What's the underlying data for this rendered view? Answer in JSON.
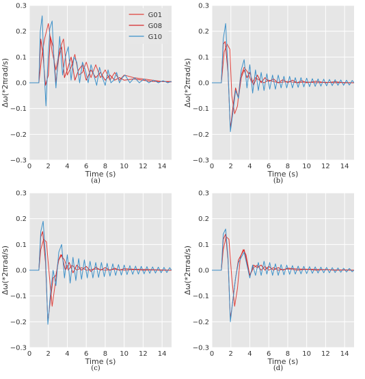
{
  "figure": {
    "captions": [
      "(a)",
      "(b)",
      "(c)",
      "(d)"
    ]
  },
  "style": {
    "plot_bg": "#e6e6e6",
    "grid_color": "#ffffff",
    "tick_text": "#333333"
  },
  "chart_data": [
    {
      "type": "line",
      "panel": "(a)",
      "xlabel": "Time (s)",
      "ylabel": "Δω(*2πrad/s)",
      "xlim": [
        0,
        15
      ],
      "ylim": [
        -0.3,
        0.3
      ],
      "xticks": [
        0,
        2,
        4,
        6,
        8,
        10,
        12,
        14
      ],
      "yticks": [
        -0.3,
        -0.2,
        -0.1,
        0.0,
        0.1,
        0.2,
        0.3
      ],
      "grid": true,
      "legend": "top-center",
      "series": [
        {
          "name": "G01",
          "color": "#e0403a",
          "x": [
            0,
            1,
            1.3,
            1.6,
            2,
            2.4,
            2.8,
            3.2,
            3.6,
            4,
            4.4,
            4.8,
            5.2,
            5.6,
            6,
            6.5,
            7,
            7.5,
            8,
            8.5,
            9,
            9.5,
            10,
            11,
            12,
            13,
            14,
            15
          ],
          "y": [
            0,
            0,
            0.1,
            0.17,
            0.23,
            0.12,
            0.05,
            0.13,
            0.17,
            0.03,
            0.06,
            0.11,
            0.03,
            0.04,
            0.08,
            0.02,
            0.07,
            0.02,
            0.05,
            0.01,
            0.04,
            0.01,
            0.03,
            0.02,
            0.015,
            0.01,
            0.005,
            0.005
          ]
        },
        {
          "name": "G08",
          "color": "#d62728",
          "x": [
            0,
            1,
            1.2,
            1.4,
            1.7,
            2,
            2.2,
            2.5,
            2.8,
            3.1,
            3.4,
            3.7,
            4,
            4.4,
            4.8,
            5.2,
            5.6,
            6,
            6.5,
            7,
            7.5,
            8,
            8.5,
            9,
            9.5,
            10,
            11,
            12,
            13,
            14,
            15
          ],
          "y": [
            0,
            0,
            0.17,
            0.12,
            -0.01,
            0.03,
            0.18,
            0.14,
            0.0,
            0.1,
            0.14,
            0.02,
            0.05,
            0.1,
            0.01,
            0.05,
            0.07,
            0.01,
            0.05,
            0.02,
            0.04,
            0.01,
            0.03,
            0.01,
            0.02,
            0.01,
            0.015,
            0.01,
            0.005,
            0.005,
            0.003
          ]
        },
        {
          "name": "G10",
          "color": "#3a8fc8",
          "x": [
            0,
            1,
            1.15,
            1.35,
            1.55,
            1.75,
            1.95,
            2.15,
            2.4,
            2.6,
            2.8,
            3.0,
            3.2,
            3.5,
            3.8,
            4.1,
            4.4,
            4.7,
            5.0,
            5.3,
            5.6,
            5.9,
            6.2,
            6.5,
            6.8,
            7.1,
            7.4,
            7.7,
            8.0,
            8.3,
            8.6,
            8.9,
            9.2,
            9.5,
            9.8,
            10.1,
            10.6,
            11.1,
            11.6,
            12.1,
            12.6,
            13.1,
            13.6,
            14.1,
            14.6,
            15
          ],
          "y": [
            0,
            0,
            0.2,
            0.26,
            0.05,
            -0.09,
            0.08,
            0.21,
            0.24,
            0.08,
            -0.02,
            0.08,
            0.18,
            0.03,
            0.1,
            0.14,
            0.01,
            0.1,
            0.08,
            0.0,
            0.08,
            0.05,
            0.0,
            0.07,
            0.03,
            -0.01,
            0.06,
            0.02,
            -0.01,
            0.05,
            0.0,
            0.01,
            0.04,
            0.0,
            0.02,
            0.03,
            0.0,
            0.02,
            0.0,
            0.015,
            0.0,
            0.01,
            0.0,
            0.008,
            0.0,
            0.005
          ]
        }
      ]
    },
    {
      "type": "line",
      "panel": "(b)",
      "xlabel": "Time (s)",
      "ylabel": "Δω(*2πrad/s)",
      "xlim": [
        0,
        15
      ],
      "ylim": [
        -0.3,
        0.3
      ],
      "xticks": [
        0,
        2,
        4,
        6,
        8,
        10,
        12,
        14
      ],
      "yticks": [
        -0.3,
        -0.2,
        -0.1,
        0.0,
        0.1,
        0.2,
        0.3
      ],
      "grid": true,
      "series": [
        {
          "name": "G01",
          "color": "#e0403a",
          "x": [
            0,
            1,
            1.3,
            1.6,
            1.9,
            2.1,
            2.4,
            2.7,
            3.0,
            3.4,
            3.8,
            4.2,
            4.6,
            5.0,
            5.5,
            6,
            7,
            8,
            9,
            10,
            11,
            12,
            13,
            14,
            15
          ],
          "y": [
            0,
            0,
            0.12,
            0.15,
            0.13,
            -0.05,
            -0.12,
            -0.09,
            0.02,
            0.06,
            0.04,
            0.0,
            0.02,
            0.01,
            0.0,
            0.01,
            0.0,
            0.005,
            0.0,
            0.003,
            0.0,
            0.002,
            0.0,
            0.001,
            0.0
          ]
        },
        {
          "name": "G08",
          "color": "#d62728",
          "x": [
            0,
            1,
            1.2,
            1.4,
            1.7,
            1.95,
            2.2,
            2.5,
            2.8,
            3.1,
            3.4,
            3.7,
            4.0,
            4.4,
            4.8,
            5.2,
            5.6,
            6,
            6.5,
            7,
            7.5,
            8,
            8.5,
            9,
            9.5,
            10,
            11,
            12,
            13,
            14,
            15
          ],
          "y": [
            0,
            0,
            0.15,
            0.16,
            0.04,
            -0.18,
            -0.1,
            -0.02,
            -0.06,
            0.02,
            0.05,
            0.02,
            0.04,
            -0.01,
            0.03,
            0.0,
            0.02,
            0.005,
            0.015,
            0.0,
            0.012,
            0.0,
            0.01,
            0.0,
            0.008,
            0.0,
            0.006,
            0.0,
            0.004,
            0.0,
            0.0
          ]
        },
        {
          "name": "G10",
          "color": "#3a8fc8",
          "x": [
            0,
            1,
            1.2,
            1.45,
            1.7,
            1.95,
            2.2,
            2.5,
            2.8,
            3.1,
            3.4,
            3.7,
            4.0,
            4.3,
            4.6,
            4.9,
            5.2,
            5.5,
            5.8,
            6.1,
            6.4,
            6.7,
            7.0,
            7.3,
            7.6,
            7.9,
            8.2,
            8.5,
            8.8,
            9.1,
            9.4,
            9.7,
            10.0,
            10.3,
            10.6,
            10.9,
            11.2,
            11.5,
            11.8,
            12.1,
            12.4,
            12.7,
            13.0,
            13.3,
            13.6,
            13.9,
            14.2,
            14.5,
            14.8,
            15
          ],
          "y": [
            0,
            0,
            0.17,
            0.23,
            0.05,
            -0.19,
            -0.12,
            -0.03,
            -0.06,
            0.05,
            0.09,
            -0.02,
            0.07,
            -0.04,
            0.05,
            -0.03,
            0.04,
            -0.03,
            0.035,
            -0.025,
            0.03,
            -0.025,
            0.03,
            -0.02,
            0.025,
            -0.02,
            0.025,
            -0.02,
            0.02,
            -0.018,
            0.02,
            -0.016,
            0.018,
            -0.015,
            0.016,
            -0.014,
            0.015,
            -0.013,
            0.014,
            -0.012,
            0.013,
            -0.011,
            0.012,
            -0.01,
            0.011,
            -0.01,
            0.01,
            -0.009,
            0.009,
            0.0
          ]
        }
      ]
    },
    {
      "type": "line",
      "panel": "(c)",
      "xlabel": "Time (s)",
      "ylabel": "Δω(*2πrad/s)",
      "xlim": [
        0,
        15
      ],
      "ylim": [
        -0.3,
        0.3
      ],
      "xticks": [
        0,
        2,
        4,
        6,
        8,
        10,
        12,
        14
      ],
      "yticks": [
        -0.3,
        -0.2,
        -0.1,
        0.0,
        0.1,
        0.2,
        0.3
      ],
      "grid": true,
      "series": [
        {
          "name": "G01",
          "color": "#e0403a",
          "x": [
            0,
            1,
            1.2,
            1.5,
            1.8,
            2.1,
            2.4,
            2.7,
            3.0,
            3.3,
            3.7,
            4.1,
            4.5,
            5,
            5.5,
            6,
            7,
            8,
            9,
            10,
            11,
            12,
            13,
            14,
            15
          ],
          "y": [
            0,
            0,
            0.08,
            0.12,
            0.11,
            -0.02,
            -0.14,
            -0.06,
            0.03,
            0.06,
            0.04,
            0.0,
            0.02,
            0.0,
            0.01,
            0.0,
            0.005,
            0.0,
            0.003,
            0.0,
            0.002,
            0.0,
            0.001,
            0.0,
            0.0
          ]
        },
        {
          "name": "G08",
          "color": "#d62728",
          "x": [
            0,
            1,
            1.2,
            1.4,
            1.7,
            1.95,
            2.2,
            2.5,
            2.8,
            3.1,
            3.4,
            3.8,
            4.2,
            4.6,
            5,
            5.5,
            6,
            6.5,
            7,
            7.5,
            8,
            8.5,
            9,
            9.5,
            10,
            11,
            12,
            13,
            14,
            15
          ],
          "y": [
            0,
            0,
            0.13,
            0.15,
            0.03,
            -0.2,
            -0.12,
            -0.03,
            -0.02,
            0.04,
            0.06,
            0.0,
            0.03,
            -0.01,
            0.02,
            0.0,
            0.015,
            -0.005,
            0.012,
            0.0,
            0.01,
            0.0,
            0.008,
            0.0,
            0.006,
            0.004,
            0.003,
            0.002,
            0.001,
            0.0
          ]
        },
        {
          "name": "G10",
          "color": "#3a8fc8",
          "x": [
            0,
            1,
            1.2,
            1.45,
            1.7,
            1.95,
            2.2,
            2.5,
            2.8,
            3.1,
            3.4,
            3.7,
            4.0,
            4.3,
            4.6,
            4.9,
            5.2,
            5.5,
            5.8,
            6.1,
            6.4,
            6.7,
            7.0,
            7.3,
            7.6,
            7.9,
            8.2,
            8.5,
            8.8,
            9.1,
            9.4,
            9.7,
            10.0,
            10.3,
            10.6,
            10.9,
            11.2,
            11.5,
            11.8,
            12.1,
            12.4,
            12.7,
            13.0,
            13.3,
            13.6,
            13.9,
            14.2,
            14.5,
            14.8,
            15
          ],
          "y": [
            0,
            0,
            0.15,
            0.19,
            0.06,
            -0.21,
            -0.1,
            0.0,
            -0.06,
            0.07,
            0.1,
            -0.03,
            0.06,
            -0.05,
            0.05,
            -0.04,
            0.045,
            -0.035,
            0.04,
            -0.03,
            0.035,
            -0.03,
            0.03,
            -0.028,
            0.03,
            -0.025,
            0.027,
            -0.023,
            0.025,
            -0.02,
            0.022,
            -0.019,
            0.02,
            -0.017,
            0.018,
            -0.016,
            0.016,
            -0.015,
            0.015,
            -0.014,
            0.014,
            -0.012,
            0.013,
            -0.011,
            0.012,
            -0.01,
            0.011,
            -0.009,
            0.01,
            0.0
          ]
        }
      ]
    },
    {
      "type": "line",
      "panel": "(d)",
      "xlabel": "Time (s)",
      "ylabel": "Δω(*2πrad/s)",
      "xlim": [
        0,
        15
      ],
      "ylim": [
        -0.3,
        0.3
      ],
      "xticks": [
        0,
        2,
        4,
        6,
        8,
        10,
        12,
        14
      ],
      "yticks": [
        -0.3,
        -0.2,
        -0.1,
        0.0,
        0.1,
        0.2,
        0.3
      ],
      "grid": true,
      "series": [
        {
          "name": "G01",
          "color": "#e0403a",
          "x": [
            0,
            1,
            1.2,
            1.5,
            1.8,
            2.1,
            2.4,
            2.7,
            3.0,
            3.3,
            3.6,
            4.0,
            4.4,
            4.8,
            5.2,
            5.6,
            6,
            6.5,
            7,
            8,
            9,
            10,
            11,
            12,
            13,
            14,
            15
          ],
          "y": [
            0,
            0,
            0.08,
            0.13,
            0.12,
            -0.03,
            -0.14,
            -0.07,
            0.05,
            0.08,
            0.06,
            -0.02,
            0.01,
            0.02,
            0.0,
            0.015,
            0.0,
            0.01,
            0.0,
            0.005,
            0.0,
            0.003,
            0.0,
            0.002,
            0.0,
            0.001,
            0.0
          ]
        },
        {
          "name": "G08",
          "color": "#d62728",
          "x": [
            0,
            1,
            1.2,
            1.45,
            1.7,
            1.95,
            2.2,
            2.5,
            2.8,
            3.1,
            3.4,
            3.7,
            4.0,
            4.4,
            4.8,
            5.2,
            5.6,
            6,
            6.5,
            7,
            7.5,
            8,
            9,
            10,
            11,
            12,
            13,
            14,
            15
          ],
          "y": [
            0,
            0,
            0.12,
            0.14,
            0.04,
            -0.19,
            -0.12,
            -0.03,
            0.04,
            0.06,
            0.08,
            0.03,
            -0.02,
            0.02,
            0.01,
            0.02,
            0.0,
            0.015,
            0.0,
            0.01,
            0.0,
            0.008,
            0.005,
            0.004,
            0.003,
            0.002,
            0.001,
            0.001,
            0.0
          ]
        },
        {
          "name": "G10",
          "color": "#3a8fc8",
          "x": [
            0,
            1,
            1.2,
            1.45,
            1.7,
            1.95,
            2.2,
            2.5,
            2.8,
            3.1,
            3.4,
            3.7,
            4.0,
            4.3,
            4.6,
            4.9,
            5.2,
            5.5,
            5.8,
            6.1,
            6.4,
            6.7,
            7.0,
            7.3,
            7.6,
            7.9,
            8.2,
            8.5,
            8.8,
            9.1,
            9.4,
            9.7,
            10.0,
            10.3,
            10.6,
            10.9,
            11.2,
            11.5,
            11.8,
            12.1,
            12.4,
            12.7,
            13.0,
            13.3,
            13.6,
            13.9,
            14.2,
            14.5,
            14.8,
            15
          ],
          "y": [
            0,
            0,
            0.14,
            0.16,
            0.05,
            -0.2,
            -0.12,
            -0.03,
            0.03,
            0.05,
            0.07,
            0.02,
            -0.03,
            0.02,
            -0.02,
            0.03,
            -0.02,
            0.035,
            -0.015,
            0.03,
            -0.02,
            0.025,
            -0.02,
            0.022,
            -0.018,
            0.02,
            -0.016,
            0.018,
            -0.015,
            0.016,
            -0.014,
            0.015,
            -0.013,
            0.014,
            -0.012,
            0.013,
            -0.011,
            0.012,
            -0.01,
            0.011,
            -0.01,
            0.01,
            -0.009,
            0.009,
            -0.008,
            0.008,
            -0.007,
            0.007,
            -0.006,
            0.0
          ]
        }
      ]
    }
  ]
}
